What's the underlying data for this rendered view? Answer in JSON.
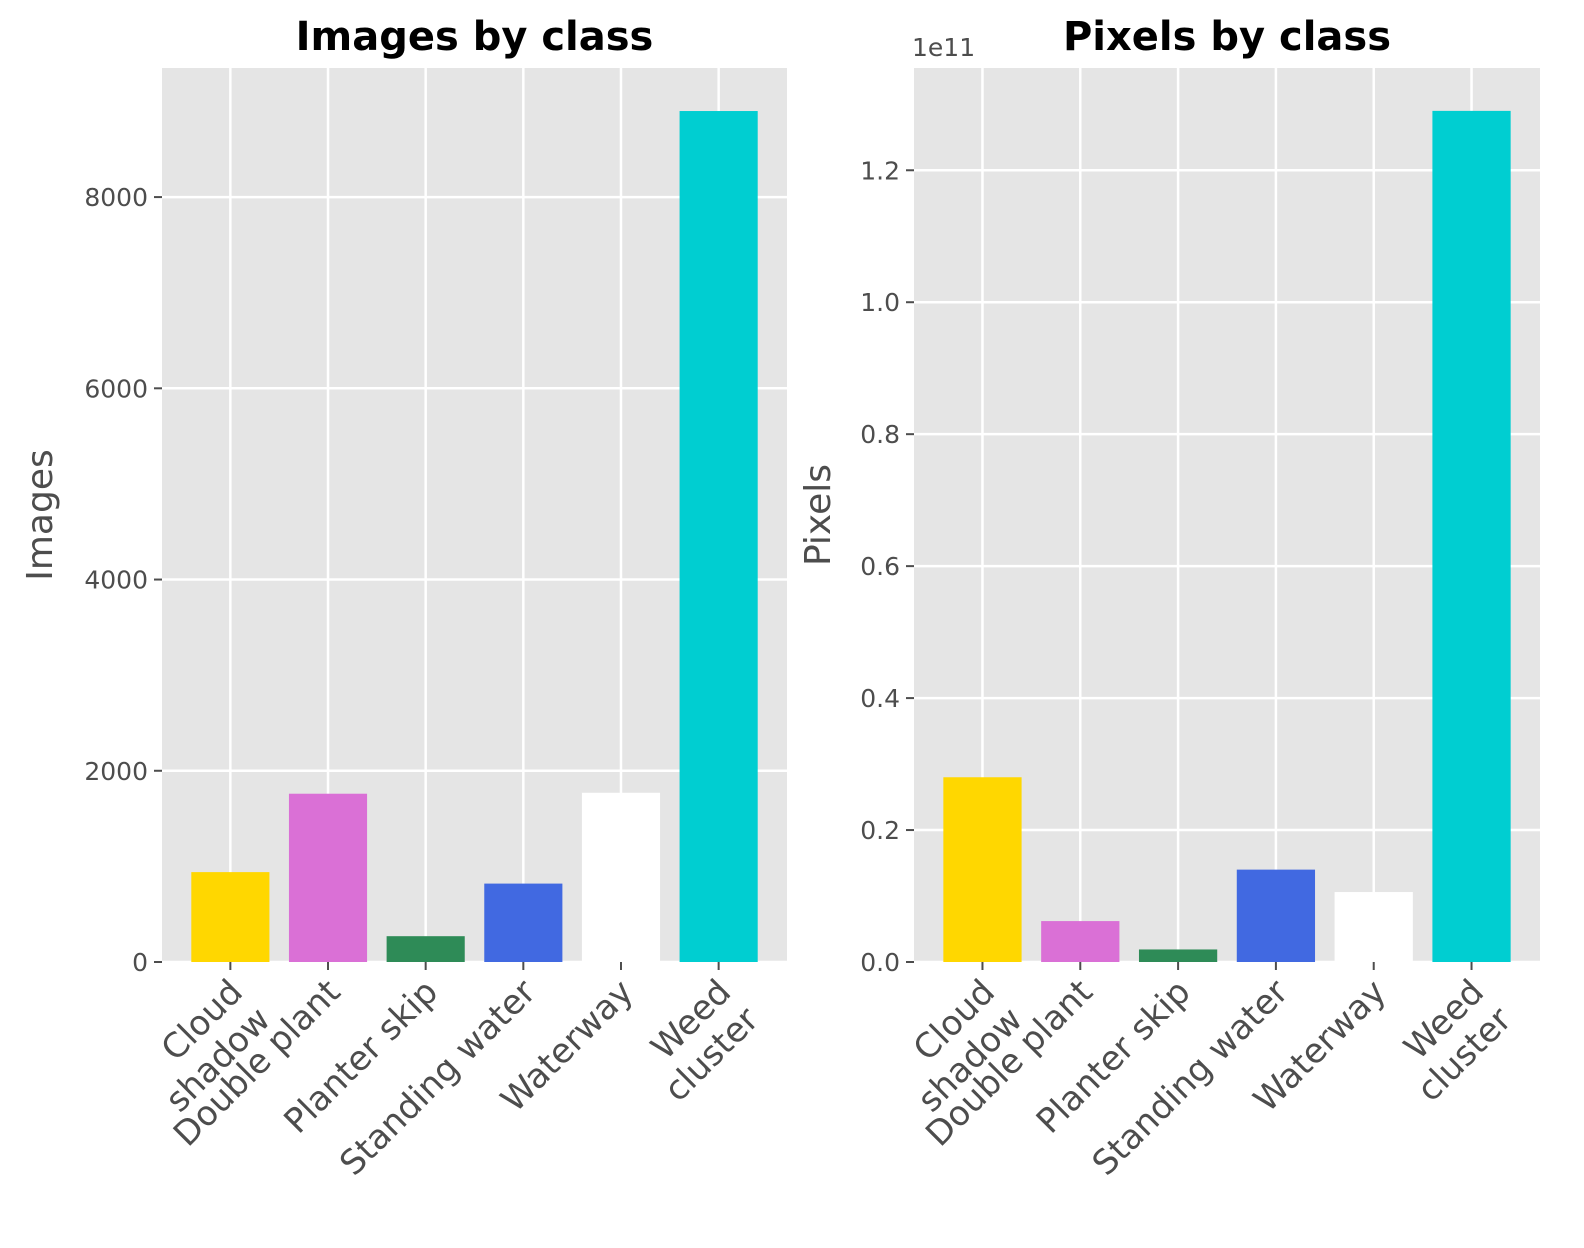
{
  "chart_data": [
    {
      "type": "bar",
      "title": "Images by class",
      "xlabel": "",
      "ylabel": "Images",
      "categories": [
        "Cloud\nshadow",
        "Double plant",
        "Planter skip",
        "Standing water",
        "Waterway",
        "Weed\ncluster"
      ],
      "values": [
        940,
        1760,
        270,
        820,
        1770,
        8900
      ],
      "colors": [
        "#FFD700",
        "#DA70D6",
        "#2E8B57",
        "#4169E1",
        "#FFFFFF",
        "#00CED1"
      ],
      "ylim": [
        0,
        9350
      ],
      "yticks": [
        0,
        2000,
        4000,
        6000,
        8000
      ],
      "ytick_labels": [
        "0",
        "2000",
        "4000",
        "6000",
        "8000"
      ],
      "offset_text": "",
      "grid": true,
      "background": "#E5E5E5"
    },
    {
      "type": "bar",
      "title": "Pixels by class",
      "xlabel": "",
      "ylabel": "Pixels",
      "categories": [
        "Cloud\nshadow",
        "Double plant",
        "Planter skip",
        "Standing water",
        "Waterway",
        "Weed\ncluster"
      ],
      "values": [
        28000000000,
        6200000000,
        1900000000,
        14000000000,
        10600000000,
        129000000000
      ],
      "colors": [
        "#FFD700",
        "#DA70D6",
        "#2E8B57",
        "#4169E1",
        "#FFFFFF",
        "#00CED1"
      ],
      "ylim": [
        0,
        135500000000
      ],
      "yticks": [
        0,
        20000000000,
        40000000000,
        60000000000,
        80000000000,
        100000000000,
        120000000000
      ],
      "ytick_labels": [
        "0.0",
        "0.2",
        "0.4",
        "0.6",
        "0.8",
        "1.0",
        "1.2"
      ],
      "offset_text": "1e11",
      "grid": true,
      "background": "#E5E5E5"
    }
  ]
}
